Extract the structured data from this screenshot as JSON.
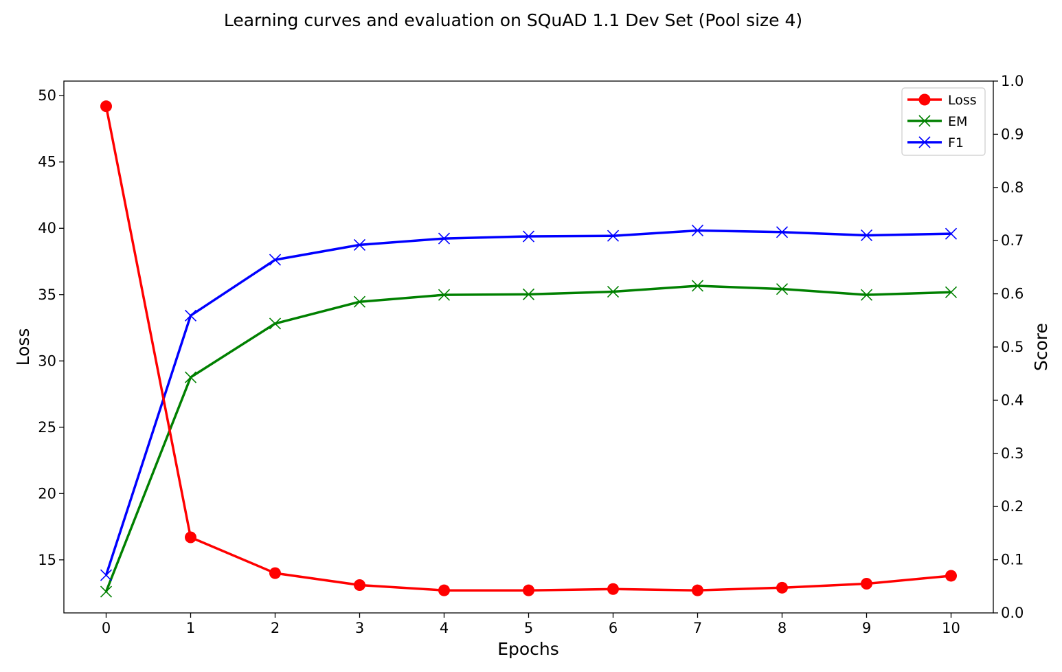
{
  "chart_data": {
    "type": "line",
    "title": "Learning curves and evaluation on SQuAD 1.1 Dev Set (Pool size 4)",
    "xlabel": "Epochs",
    "ylabel": "Loss",
    "y2label": "Score",
    "x": [
      0,
      1,
      2,
      3,
      4,
      5,
      6,
      7,
      8,
      9,
      10
    ],
    "xticks": [
      "0",
      "1",
      "2",
      "3",
      "4",
      "5",
      "6",
      "7",
      "8",
      "9",
      "10"
    ],
    "xlim": [
      -0.5,
      10.5
    ],
    "ylim": [
      11.0,
      51.1
    ],
    "yticks": [
      15,
      20,
      25,
      30,
      35,
      40,
      45,
      50
    ],
    "y2lim": [
      0.0,
      1.0
    ],
    "y2ticks": [
      "0.0",
      "0.1",
      "0.2",
      "0.3",
      "0.4",
      "0.5",
      "0.6",
      "0.7",
      "0.8",
      "0.9",
      "1.0"
    ],
    "legend_position": "top-right",
    "grid": false,
    "series": [
      {
        "name": "Loss",
        "axis": "left",
        "color": "#ff0000",
        "marker": "circle",
        "values": [
          49.2,
          16.7,
          14.0,
          13.1,
          12.7,
          12.7,
          12.8,
          12.7,
          12.9,
          13.2,
          13.8
        ]
      },
      {
        "name": "EM",
        "axis": "right",
        "color": "#008000",
        "marker": "x",
        "values": [
          0.04,
          0.443,
          0.544,
          0.585,
          0.598,
          0.599,
          0.604,
          0.615,
          0.609,
          0.598,
          0.603
        ]
      },
      {
        "name": "F1",
        "axis": "right",
        "color": "#0000ff",
        "marker": "x",
        "values": [
          0.071,
          0.559,
          0.664,
          0.692,
          0.704,
          0.708,
          0.709,
          0.719,
          0.716,
          0.71,
          0.713
        ]
      }
    ]
  }
}
